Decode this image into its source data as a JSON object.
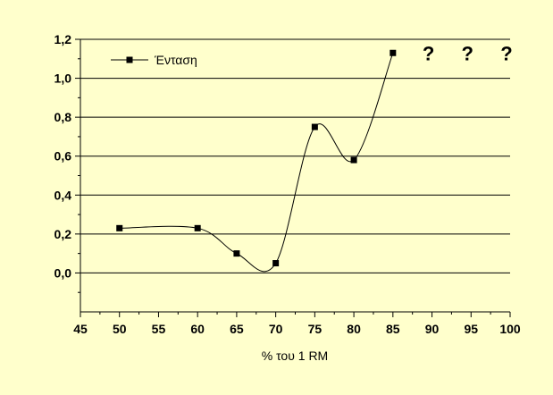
{
  "chart_data": {
    "type": "line",
    "xlabel": "% του 1 RM",
    "ylabel": "",
    "xlim": [
      45,
      100
    ],
    "ylim": [
      -0.2,
      1.2
    ],
    "x_ticks": [
      45,
      50,
      55,
      60,
      65,
      70,
      75,
      80,
      85,
      90,
      95,
      100
    ],
    "x_tick_labels": [
      "45",
      "50",
      "55",
      "60",
      "65",
      "70",
      "75",
      "80",
      "85",
      "90",
      "95",
      "100"
    ],
    "y_ticks": [
      0.0,
      0.2,
      0.4,
      0.6,
      0.8,
      1.0,
      1.2
    ],
    "y_tick_labels": [
      "0,0",
      "0,2",
      "0,4",
      "0,6",
      "0,8",
      "1,0",
      "1,2"
    ],
    "grid": "horizontal",
    "legend_position": "top-left",
    "series": [
      {
        "name": "Ένταση",
        "color": "#000000",
        "marker": "square",
        "smooth": true,
        "x": [
          50,
          60,
          65,
          70,
          75,
          80,
          85
        ],
        "y": [
          0.23,
          0.23,
          0.1,
          0.05,
          0.75,
          0.58,
          1.13
        ]
      }
    ],
    "annotations": [
      {
        "text": "?",
        "x": 90,
        "y": 1.13
      },
      {
        "text": "?",
        "x": 95,
        "y": 1.13
      },
      {
        "text": "?",
        "x": 100,
        "y": 1.13
      }
    ]
  },
  "colors": {
    "background": "#ffffcc",
    "axes": "#000000",
    "grid": "#000000"
  }
}
